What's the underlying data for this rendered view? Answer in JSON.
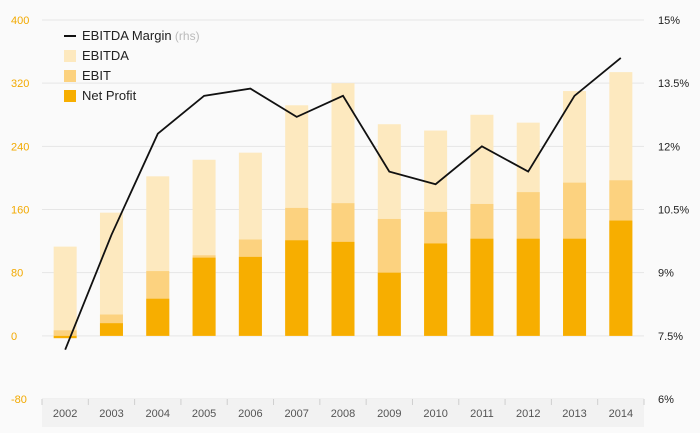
{
  "chart_data": {
    "type": "bar",
    "categories": [
      "2002",
      "2003",
      "2004",
      "2005",
      "2006",
      "2007",
      "2008",
      "2009",
      "2010",
      "2011",
      "2012",
      "2013",
      "2014"
    ],
    "series": [
      {
        "name": "EBITDA",
        "type": "bar",
        "axis": "left",
        "color": "#fde9bf",
        "values": [
          113,
          156,
          202,
          223,
          232,
          292,
          320,
          268,
          260,
          280,
          270,
          310,
          334
        ]
      },
      {
        "name": "EBIT",
        "type": "bar",
        "axis": "left",
        "color": "#fcd27f",
        "values": [
          7,
          27,
          82,
          102,
          122,
          162,
          168,
          148,
          157,
          167,
          182,
          194,
          197
        ]
      },
      {
        "name": "Net Profit",
        "type": "bar",
        "axis": "left",
        "color": "#f7ae00",
        "values": [
          -3,
          16,
          47,
          99,
          100,
          121,
          119,
          80,
          117,
          123,
          123,
          123,
          146
        ]
      },
      {
        "name": "EBITDA Margin",
        "name_suffix": "(rhs)",
        "type": "line",
        "axis": "right",
        "color": "#111111",
        "values": [
          7.17,
          9.9,
          12.3,
          13.2,
          13.37,
          12.7,
          13.2,
          11.4,
          11.1,
          12.0,
          11.4,
          13.2,
          14.1
        ]
      }
    ],
    "left_axis": {
      "ticks": [
        "400",
        "320",
        "240",
        "160",
        "80",
        "0",
        "-80"
      ],
      "ylim": [
        -80,
        400
      ],
      "color": "#f2a900"
    },
    "right_axis": {
      "ticks": [
        "15%",
        "13.5%",
        "12%",
        "10.5%",
        "9%",
        "7.5%",
        "6%"
      ],
      "ylim": [
        6,
        15
      ]
    },
    "grid": true,
    "legend_position": "top-left"
  }
}
